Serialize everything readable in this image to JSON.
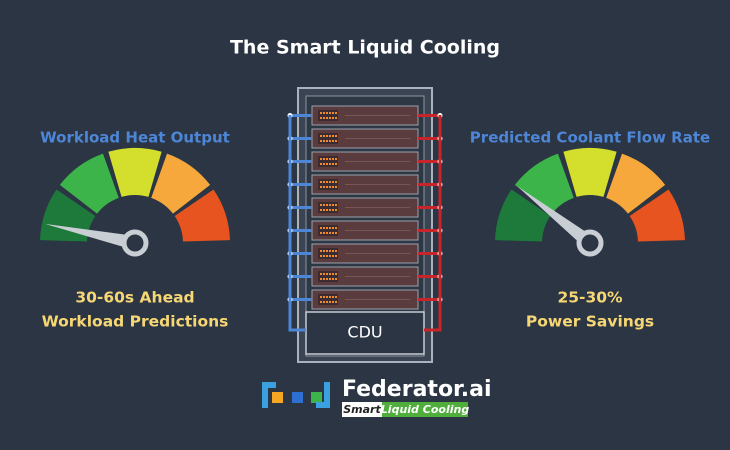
{
  "title": "The Smart Liquid Cooling",
  "left_gauge": {
    "label": "Workload Heat Output",
    "caption": [
      "30-60s Ahead",
      "Workload Predictions"
    ]
  },
  "right_gauge": {
    "label": "Predicted Coolant Flow Rate",
    "caption": [
      "25-30%",
      "Power Savings"
    ]
  },
  "rack": {
    "cdu": "CDU"
  },
  "logo": {
    "name": "Federator.ai",
    "tag_left": "Smart",
    "tag_right": "Liquid Cooling"
  }
}
